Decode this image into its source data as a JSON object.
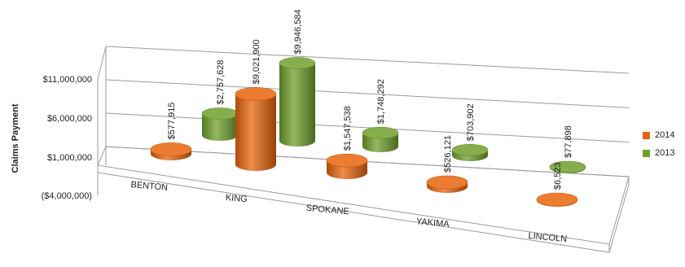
{
  "chart_data": {
    "type": "bar",
    "title": "",
    "ylabel": "Claims Payment",
    "categories": [
      "BENTON",
      "KING",
      "SPOKANE",
      "YAKIMA",
      "LINCOLN"
    ],
    "series": [
      {
        "name": "2014",
        "color": "#e8650e",
        "values": [
          577915,
          9021900,
          1547538,
          526121,
          6523
        ],
        "labels": [
          "$577,915",
          "$9,021,900",
          "$1,547,538",
          "$526,121",
          "$6,523"
        ]
      },
      {
        "name": "2013",
        "color": "#71a02e",
        "values": [
          2757628,
          9946584,
          1748292,
          703902,
          77898
        ],
        "labels": [
          "$2,757,628",
          "$9,946,584",
          "$1,748,292",
          "$703,902",
          "$77,898"
        ]
      }
    ],
    "y_ticks": [
      "$11,000,000",
      "$6,000,000",
      "$1,000,000",
      "($4,000,000)"
    ],
    "ylim": [
      -4000000,
      11000000
    ],
    "grid": true,
    "legend_position": "right"
  }
}
